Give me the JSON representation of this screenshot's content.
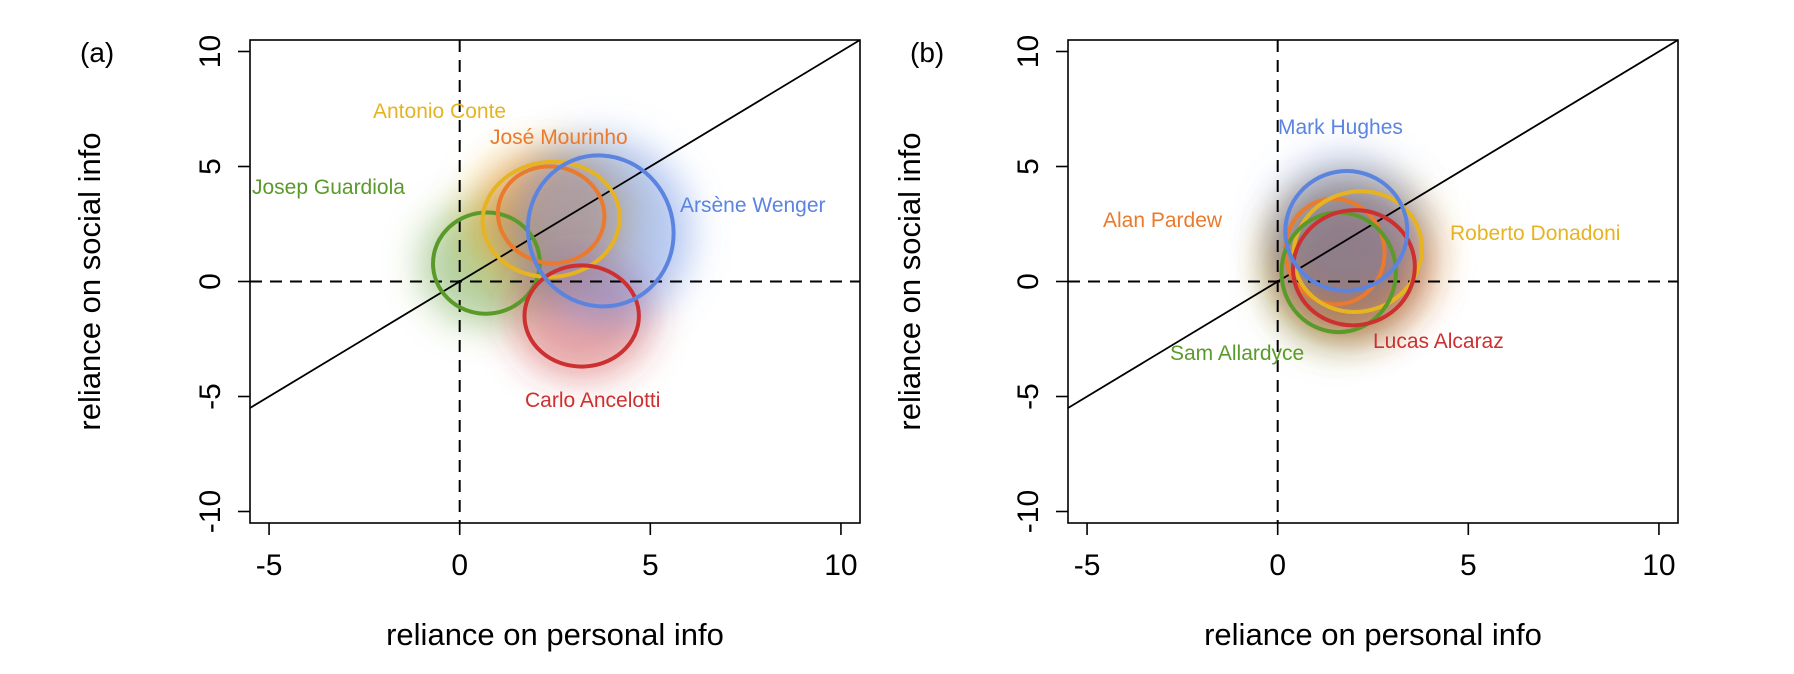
{
  "chart_data": [
    {
      "type": "scatter",
      "panel_label": "(a)",
      "xlabel": "reliance on personal info",
      "ylabel": "reliance on social info",
      "xlim": [
        -5.5,
        10.5
      ],
      "ylim": [
        -10.5,
        10.5
      ],
      "xticks": [
        -5,
        0,
        5,
        10
      ],
      "yticks": [
        -10,
        -5,
        0,
        5,
        10
      ],
      "reference_lines": {
        "identity_line": true,
        "x_zero_dashed": true,
        "y_zero_dashed": true
      },
      "series": [
        {
          "name": "Josep Guardiola",
          "color": "#5a9a2a",
          "center": [
            0.7,
            0.8
          ],
          "radius": [
            1.4,
            2.2
          ],
          "angle": 5
        },
        {
          "name": "Antonio Conte",
          "color": "#e6b422",
          "center": [
            2.4,
            2.7
          ],
          "radius": [
            1.8,
            2.5
          ],
          "angle": 5
        },
        {
          "name": "José Mourinho",
          "color": "#ea7a2d",
          "center": [
            2.4,
            2.9
          ],
          "radius": [
            1.4,
            2.1
          ],
          "angle": -10
        },
        {
          "name": "Carlo Ancelotti",
          "color": "#cc3030",
          "center": [
            3.2,
            -1.5
          ],
          "radius": [
            1.5,
            2.2
          ],
          "angle": 0
        },
        {
          "name": "Arsène Wenger",
          "color": "#5b84e0",
          "center": [
            3.7,
            2.2
          ],
          "radius": [
            1.9,
            3.3
          ],
          "angle": 20
        }
      ]
    },
    {
      "type": "scatter",
      "panel_label": "(b)",
      "xlabel": "reliance on personal info",
      "ylabel": "reliance on social info",
      "xlim": [
        -5.5,
        10.5
      ],
      "ylim": [
        -10.5,
        10.5
      ],
      "xticks": [
        -5,
        0,
        5,
        10
      ],
      "yticks": [
        -10,
        -5,
        0,
        5,
        10
      ],
      "reference_lines": {
        "identity_line": true,
        "x_zero_dashed": true,
        "y_zero_dashed": true
      },
      "series": [
        {
          "name": "Alan Pardew",
          "color": "#ea7a2d",
          "center": [
            1.5,
            1.3
          ],
          "radius": [
            1.3,
            2.3
          ],
          "angle": 10
        },
        {
          "name": "Roberto Donadoni",
          "color": "#e6b422",
          "center": [
            2.1,
            1.3
          ],
          "radius": [
            1.7,
            2.6
          ],
          "angle": 20
        },
        {
          "name": "Sam Allardyce",
          "color": "#5a9a2a",
          "center": [
            1.6,
            0.4
          ],
          "radius": [
            1.5,
            2.6
          ],
          "angle": 0
        },
        {
          "name": "Lucas Alcaraz",
          "color": "#cc3030",
          "center": [
            2.0,
            0.6
          ],
          "radius": [
            1.6,
            2.5
          ],
          "angle": 10
        },
        {
          "name": "Mark Hughes",
          "color": "#5b84e0",
          "center": [
            1.8,
            2.2
          ],
          "radius": [
            1.6,
            2.6
          ],
          "angle": 10
        }
      ]
    }
  ]
}
